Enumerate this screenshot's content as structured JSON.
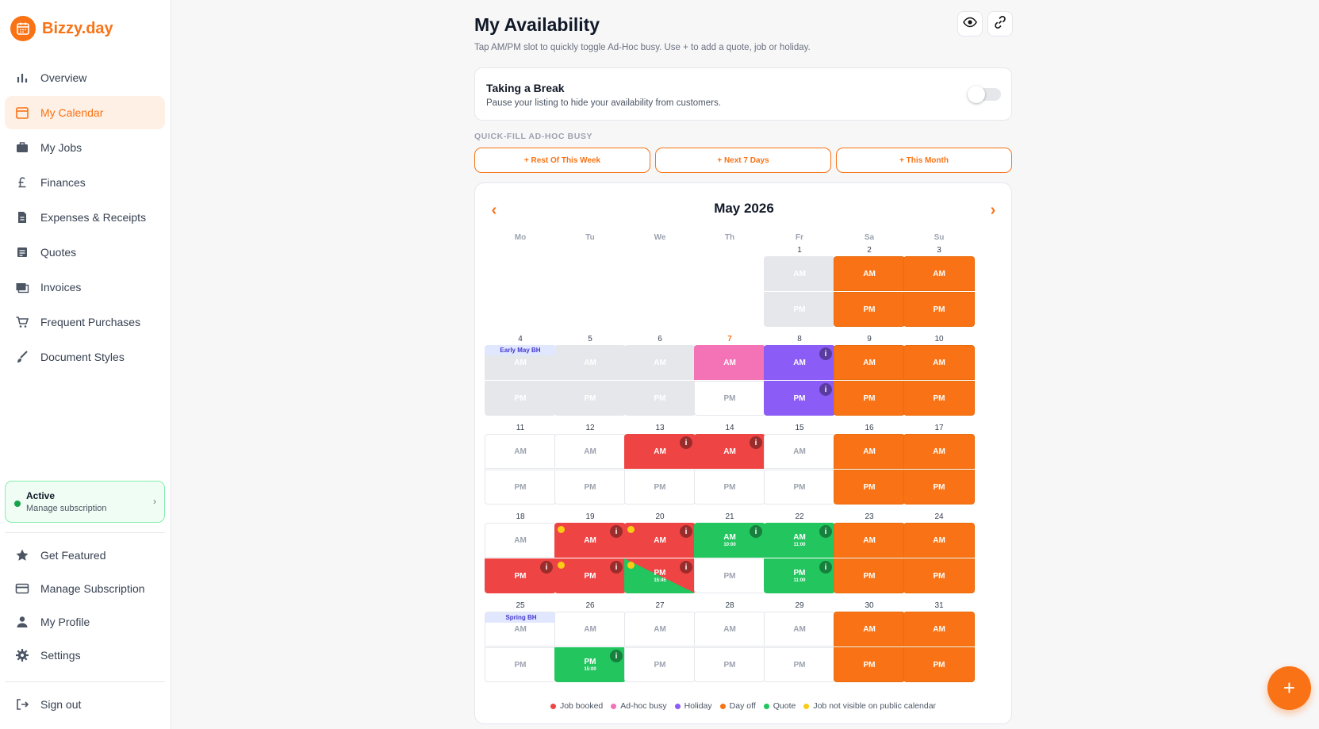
{
  "app": {
    "name": "Bizzy.day"
  },
  "sidebar": {
    "items": [
      {
        "label": "Overview",
        "icon": "bar-chart-icon"
      },
      {
        "label": "My Calendar",
        "icon": "calendar-icon",
        "active": true
      },
      {
        "label": "My Jobs",
        "icon": "briefcase-icon"
      },
      {
        "label": "Finances",
        "icon": "pound-icon"
      },
      {
        "label": "Expenses & Receipts",
        "icon": "receipt-icon"
      },
      {
        "label": "Quotes",
        "icon": "quote-doc-icon"
      },
      {
        "label": "Invoices",
        "icon": "invoice-icon"
      },
      {
        "label": "Frequent Purchases",
        "icon": "cart-icon"
      },
      {
        "label": "Document Styles",
        "icon": "brush-icon"
      }
    ],
    "subscription": {
      "title": "Active",
      "subtitle": "Manage subscription",
      "chevron": "›"
    },
    "bottom_items": [
      {
        "label": "Get Featured",
        "icon": "star-icon"
      },
      {
        "label": "Manage Subscription",
        "icon": "credit-card-icon"
      },
      {
        "label": "My Profile",
        "icon": "person-icon"
      },
      {
        "label": "Settings",
        "icon": "gear-icon"
      }
    ],
    "signout": {
      "label": "Sign out",
      "icon": "signout-icon"
    }
  },
  "main": {
    "title": "My Availability",
    "subtitle": "Tap AM/PM slot to quickly toggle Ad-Hoc busy. Use + to add a quote, job or holiday.",
    "break": {
      "title": "Taking a Break",
      "subtitle": "Pause your listing to hide your availability from customers.",
      "enabled": false
    },
    "quickfill": {
      "label": "QUICK-FILL AD-HOC BUSY",
      "buttons": [
        "+ Rest Of This Week",
        "+ Next 7 Days",
        "+ This Month"
      ]
    }
  },
  "calendar": {
    "month": "May 2026",
    "prev": "‹",
    "next": "›",
    "weekdays": [
      "Mo",
      "Tu",
      "We",
      "Th",
      "Fr",
      "Sa",
      "Su"
    ],
    "today": 7,
    "info_glyph": "i",
    "days": [
      {
        "d": 1,
        "am": {
          "s": "grey"
        },
        "pm": {
          "s": "grey"
        }
      },
      {
        "d": 2,
        "am": {
          "s": "orange"
        },
        "pm": {
          "s": "orange"
        }
      },
      {
        "d": 3,
        "am": {
          "s": "orange"
        },
        "pm": {
          "s": "orange"
        }
      },
      {
        "d": 4,
        "holiday": "Early May BH",
        "am": {
          "s": "grey"
        },
        "pm": {
          "s": "grey"
        }
      },
      {
        "d": 5,
        "am": {
          "s": "grey"
        },
        "pm": {
          "s": "grey"
        }
      },
      {
        "d": 6,
        "am": {
          "s": "grey"
        },
        "pm": {
          "s": "grey"
        }
      },
      {
        "d": 7,
        "am": {
          "s": "pink"
        },
        "pm": {
          "s": "free"
        }
      },
      {
        "d": 8,
        "am": {
          "s": "purple",
          "info": true
        },
        "pm": {
          "s": "purple",
          "info": true
        }
      },
      {
        "d": 9,
        "am": {
          "s": "orange"
        },
        "pm": {
          "s": "orange"
        }
      },
      {
        "d": 10,
        "am": {
          "s": "orange"
        },
        "pm": {
          "s": "orange"
        }
      },
      {
        "d": 11,
        "am": {
          "s": "free"
        },
        "pm": {
          "s": "free"
        }
      },
      {
        "d": 12,
        "am": {
          "s": "free"
        },
        "pm": {
          "s": "free"
        }
      },
      {
        "d": 13,
        "am": {
          "s": "red",
          "info": true
        },
        "pm": {
          "s": "free"
        }
      },
      {
        "d": 14,
        "am": {
          "s": "red",
          "info": true
        },
        "pm": {
          "s": "free"
        }
      },
      {
        "d": 15,
        "am": {
          "s": "free"
        },
        "pm": {
          "s": "free"
        }
      },
      {
        "d": 16,
        "am": {
          "s": "orange"
        },
        "pm": {
          "s": "orange"
        }
      },
      {
        "d": 17,
        "am": {
          "s": "orange"
        },
        "pm": {
          "s": "orange"
        }
      },
      {
        "d": 18,
        "am": {
          "s": "free"
        },
        "pm": {
          "s": "red",
          "info": true
        }
      },
      {
        "d": 19,
        "am": {
          "s": "red",
          "info": true,
          "dot": true
        },
        "pm": {
          "s": "red",
          "info": true,
          "dot": true
        }
      },
      {
        "d": 20,
        "am": {
          "s": "red",
          "info": true,
          "dot": true
        },
        "pm": {
          "s": "split",
          "info": true,
          "dot": true,
          "time": "15:45"
        }
      },
      {
        "d": 21,
        "am": {
          "s": "green",
          "info": true,
          "time": "10:00"
        },
        "pm": {
          "s": "free"
        }
      },
      {
        "d": 22,
        "am": {
          "s": "green",
          "info": true,
          "time": "11:00"
        },
        "pm": {
          "s": "green",
          "info": true,
          "time": "11:00"
        }
      },
      {
        "d": 23,
        "am": {
          "s": "orange"
        },
        "pm": {
          "s": "orange"
        }
      },
      {
        "d": 24,
        "am": {
          "s": "orange"
        },
        "pm": {
          "s": "orange"
        }
      },
      {
        "d": 25,
        "holiday": "Spring BH",
        "am": {
          "s": "free"
        },
        "pm": {
          "s": "free"
        }
      },
      {
        "d": 26,
        "am": {
          "s": "free"
        },
        "pm": {
          "s": "green",
          "info": true,
          "time": "15:00"
        }
      },
      {
        "d": 27,
        "am": {
          "s": "free"
        },
        "pm": {
          "s": "free"
        }
      },
      {
        "d": 28,
        "am": {
          "s": "free"
        },
        "pm": {
          "s": "free"
        }
      },
      {
        "d": 29,
        "am": {
          "s": "free"
        },
        "pm": {
          "s": "free"
        }
      },
      {
        "d": 30,
        "am": {
          "s": "orange"
        },
        "pm": {
          "s": "orange"
        }
      },
      {
        "d": 31,
        "am": {
          "s": "orange"
        },
        "pm": {
          "s": "orange"
        }
      }
    ],
    "slot_labels": {
      "am": "AM",
      "pm": "PM"
    },
    "legend": [
      {
        "label": "Job booked",
        "color": "#ef4444"
      },
      {
        "label": "Ad-hoc busy",
        "color": "#f472b6"
      },
      {
        "label": "Holiday",
        "color": "#8b5cf6"
      },
      {
        "label": "Day off",
        "color": "#f97316"
      },
      {
        "label": "Quote",
        "color": "#22c55e"
      },
      {
        "label": "Job not visible on public calendar",
        "color": "#facc15"
      }
    ]
  },
  "fab": {
    "label": "+"
  },
  "colors": {
    "accent": "#f97316"
  }
}
